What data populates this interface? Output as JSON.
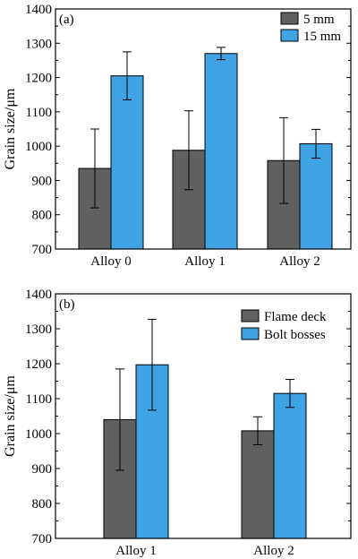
{
  "colors": {
    "series_a": "#606060",
    "series_b": "#3fa2e2",
    "axis": "#000000"
  },
  "chart_data": [
    {
      "type": "bar",
      "panel_label": "(a)",
      "ylabel": "Grain size/μm",
      "ylim": [
        700,
        1400
      ],
      "yticks": [
        700,
        800,
        900,
        1000,
        1100,
        1200,
        1300,
        1400
      ],
      "categories": [
        "Alloy 0",
        "Alloy 1",
        "Alloy 2"
      ],
      "legend_position": "top-right",
      "series": [
        {
          "name": "5 mm",
          "color": "#606060",
          "values": [
            935,
            988,
            958
          ],
          "errors": [
            115,
            115,
            125
          ]
        },
        {
          "name": "15 mm",
          "color": "#3fa2e2",
          "values": [
            1205,
            1270,
            1007
          ],
          "errors": [
            70,
            18,
            42
          ]
        }
      ]
    },
    {
      "type": "bar",
      "panel_label": "(b)",
      "ylabel": "Grain size/μm",
      "ylim": [
        700,
        1400
      ],
      "yticks": [
        700,
        800,
        900,
        1000,
        1100,
        1200,
        1300,
        1400
      ],
      "categories": [
        "Alloy 1",
        "Alloy 2"
      ],
      "legend_position": "top-right",
      "series": [
        {
          "name": "Flame deck",
          "color": "#606060",
          "values": [
            1040,
            1008
          ],
          "errors": [
            145,
            40
          ]
        },
        {
          "name": "Bolt bosses",
          "color": "#3fa2e2",
          "values": [
            1197,
            1115
          ],
          "errors": [
            130,
            40
          ]
        }
      ]
    }
  ]
}
